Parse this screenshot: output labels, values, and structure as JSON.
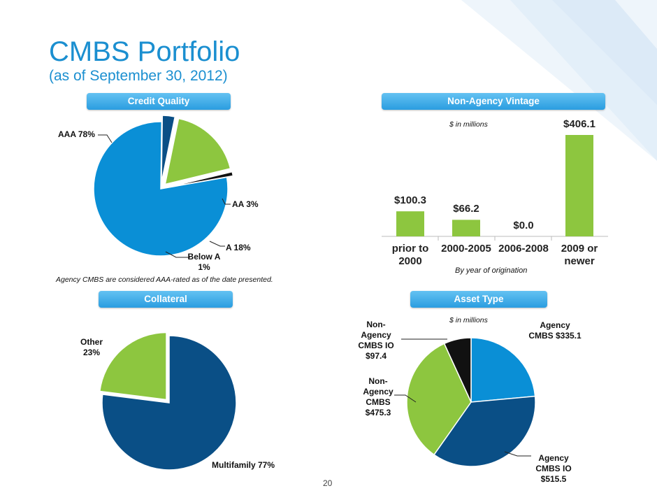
{
  "page": {
    "title": "CMBS Portfolio",
    "subtitle": "(as of September 30, 2012)",
    "page_number": "20",
    "colors": {
      "blue": "#1b8fd0",
      "light_blue": "#0a8fd6",
      "dark_blue": "#0a4f86",
      "green": "#8dc63f",
      "black": "#111111"
    }
  },
  "headers": {
    "credit_quality": "Credit Quality",
    "vintage": "Non-Agency Vintage",
    "collateral": "Collateral",
    "asset_type": "Asset Type"
  },
  "notes": {
    "agency": "Agency CMBS are considered AAA-rated  as of the date presented.",
    "vintage_units": "$ in millions",
    "vintage_axis": "By year of origination",
    "asset_units": "$ in millions"
  },
  "chart_data": [
    {
      "id": "credit_quality",
      "type": "pie",
      "title": "Credit Quality",
      "labels": [
        "AAA 78%",
        "AA 3%",
        "A 18%",
        "Below A 1%"
      ],
      "categories": [
        "AAA",
        "AA",
        "A",
        "Below A"
      ],
      "values": [
        78,
        3,
        18,
        1
      ],
      "exploded": [
        "AA",
        "A",
        "Below A"
      ]
    },
    {
      "id": "vintage",
      "type": "bar",
      "title": "Non-Agency Vintage",
      "categories": [
        "prior to 2000",
        "2000-2005",
        "2006-2008",
        "2009 or newer"
      ],
      "values": [
        100.3,
        66.2,
        0.0,
        406.1
      ],
      "data_labels": [
        "$100.3",
        "$66.2",
        "$0.0",
        "$406.1"
      ],
      "ylabel": "$ in millions",
      "xlabel": "By year of origination",
      "ylim": [
        0,
        406.1
      ]
    },
    {
      "id": "collateral",
      "type": "pie",
      "title": "Collateral",
      "labels": [
        "Multifamily 77%",
        "Other 23%"
      ],
      "categories": [
        "Multifamily",
        "Other"
      ],
      "values": [
        77,
        23
      ],
      "exploded": [
        "Other"
      ]
    },
    {
      "id": "asset_type",
      "type": "pie",
      "title": "Asset Type",
      "labels": [
        "Agency CMBS $335.1",
        "Agency CMBS IO $515.5",
        "Non-Agency CMBS $475.3",
        "Non-Agency CMBS IO $97.4"
      ],
      "categories": [
        "Agency CMBS",
        "Agency CMBS IO",
        "Non-Agency CMBS",
        "Non-Agency CMBS IO"
      ],
      "values": [
        335.1,
        515.5,
        475.3,
        97.4
      ],
      "units": "$ in millions"
    }
  ]
}
